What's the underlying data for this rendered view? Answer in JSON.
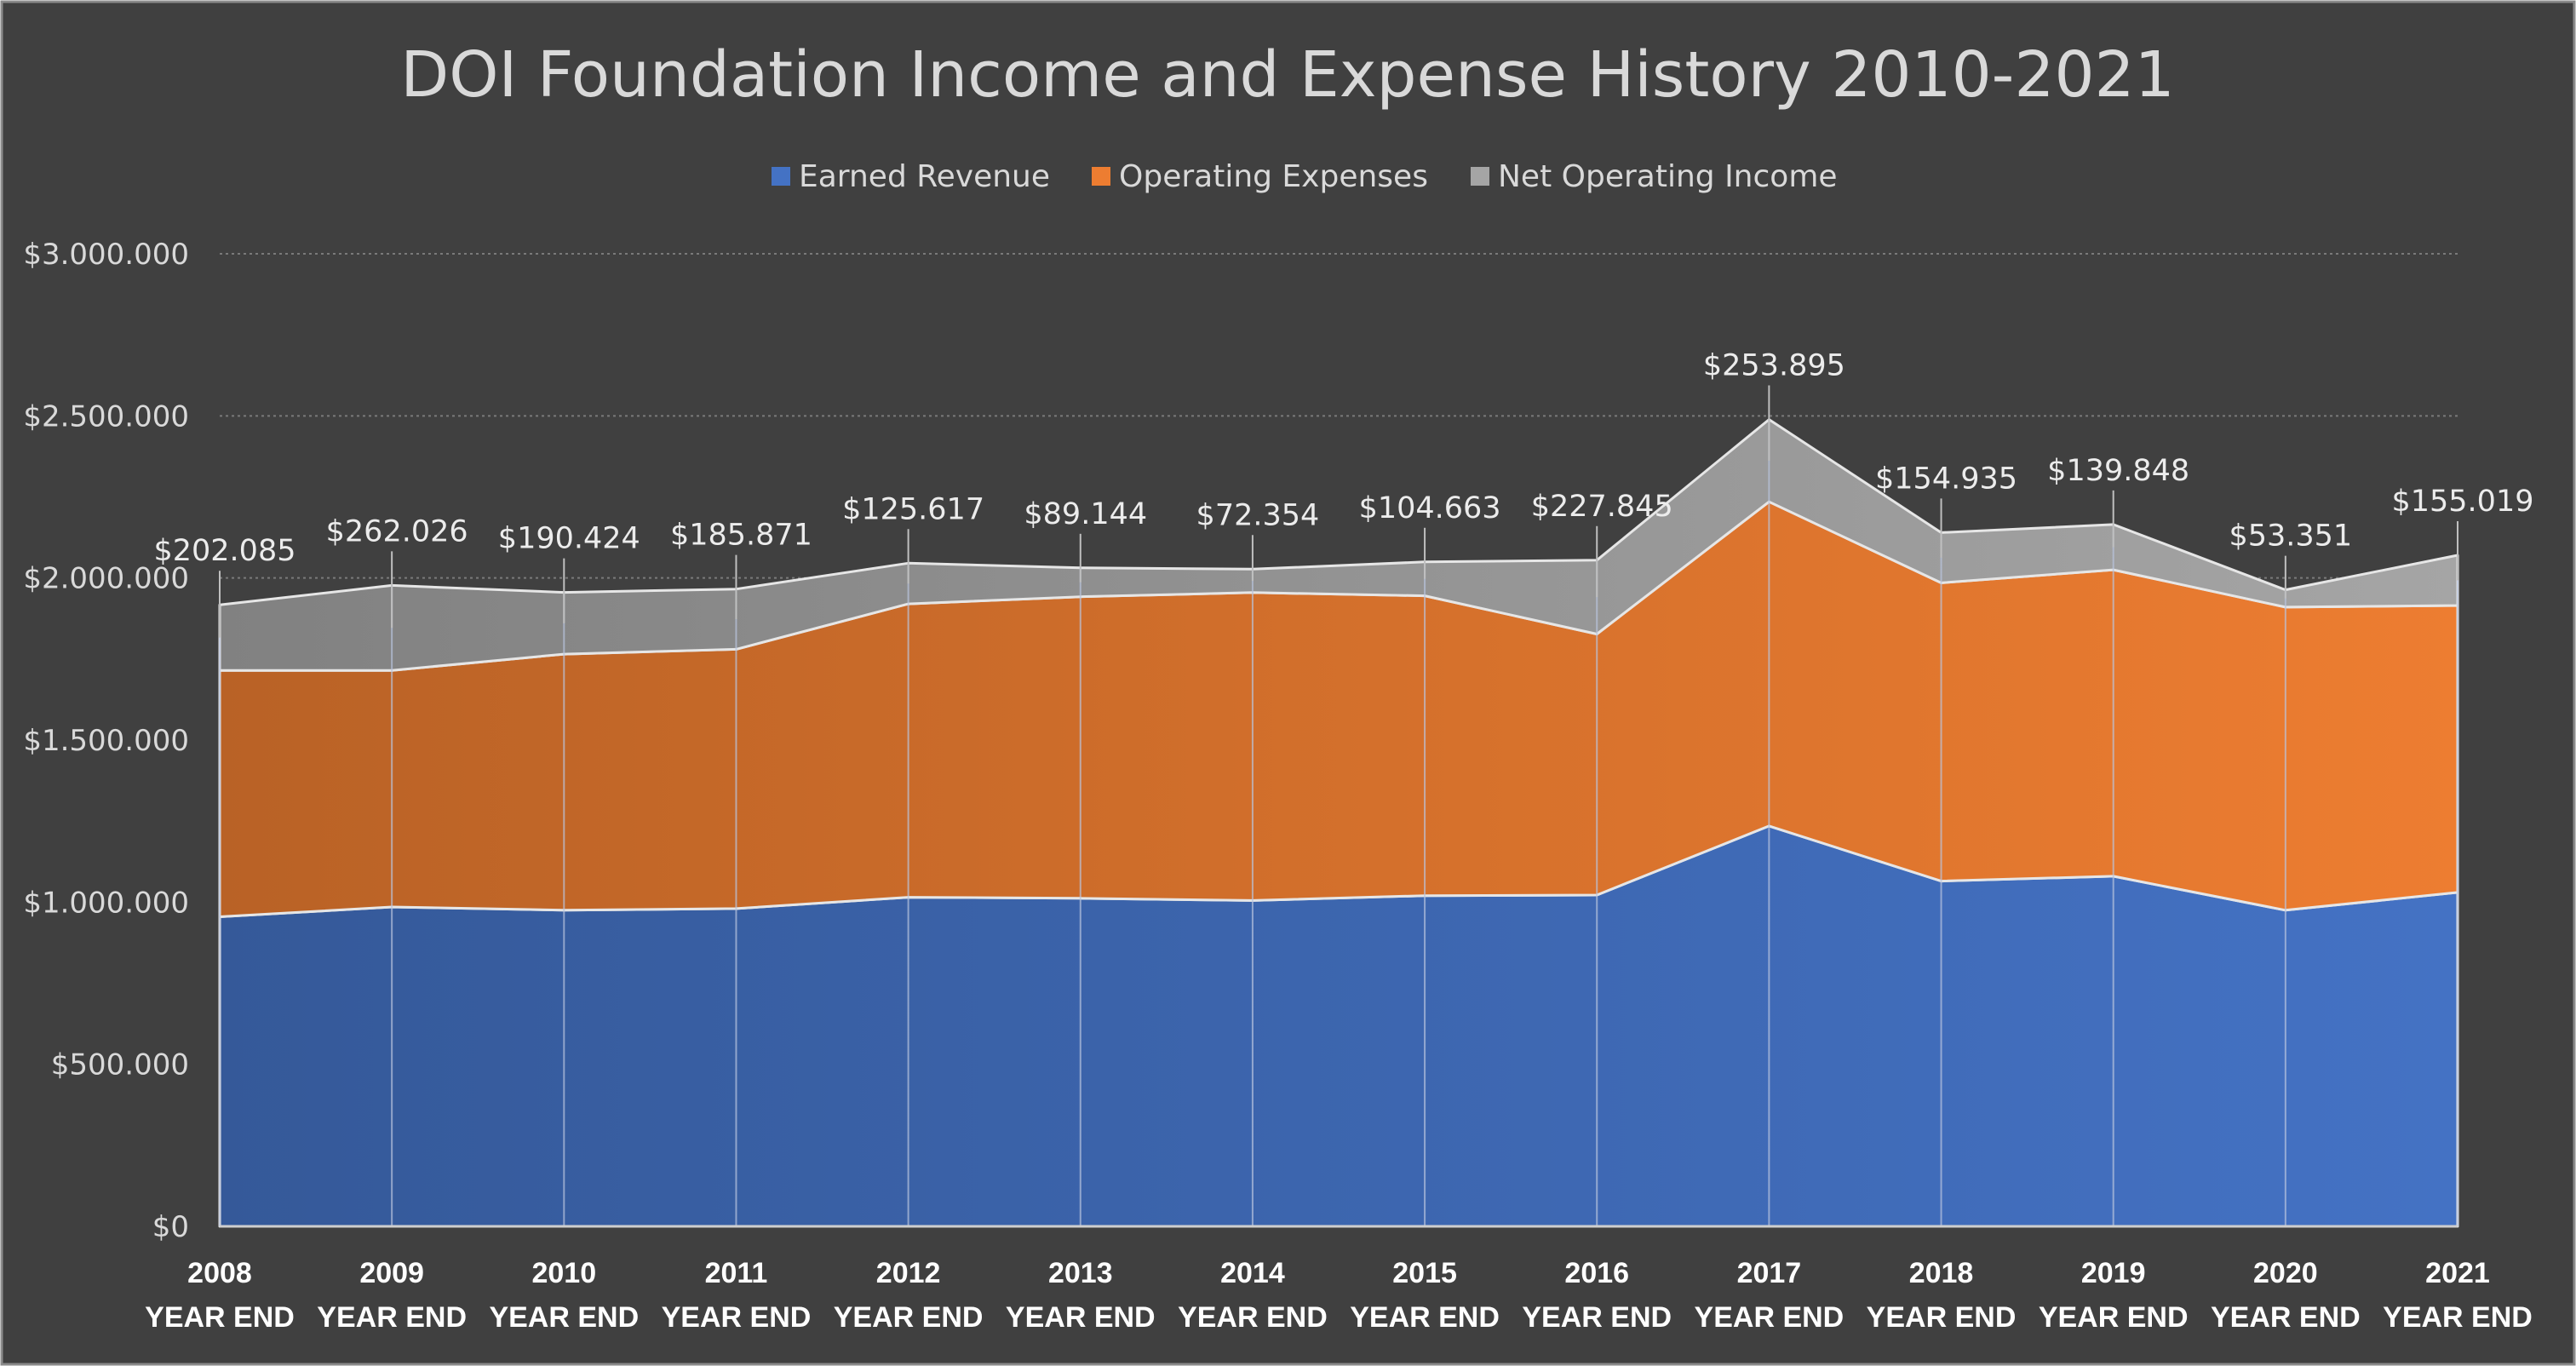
{
  "chart_data": {
    "type": "area",
    "stacked": true,
    "title": "DOI Foundation Income and Expense History 2010-2021",
    "categories": [
      "2008",
      "2009",
      "2010",
      "2011",
      "2012",
      "2013",
      "2014",
      "2015",
      "2016",
      "2017",
      "2018",
      "2019",
      "2020",
      "2021"
    ],
    "category_sublabel": "YEAR END",
    "ylim": [
      0,
      3000000
    ],
    "yticks": [
      0,
      500000,
      1000000,
      1500000,
      2000000,
      2500000,
      3000000
    ],
    "ytick_labels": [
      "$0",
      "$500.000",
      "$1.000.000",
      "$1.500.000",
      "$2.000.000",
      "$2.500.000",
      "$3.000.000"
    ],
    "grid": true,
    "legend_position": "top",
    "series": [
      {
        "name": "Earned Revenue",
        "color": "#4472c4",
        "values": [
          955000,
          985000,
          975000,
          980000,
          1015000,
          1012000,
          1005000,
          1020000,
          1022000,
          1235000,
          1065000,
          1080000,
          975000,
          1030000
        ]
      },
      {
        "name": "Operating Expenses",
        "color": "#ed7d31",
        "values": [
          760000,
          730000,
          790000,
          800000,
          905000,
          930000,
          950000,
          925000,
          805000,
          1000000,
          920000,
          945000,
          935000,
          885000
        ]
      },
      {
        "name": "Net Operating Income",
        "color": "#a5a5a5",
        "values": [
          202085,
          262026,
          190424,
          185871,
          125617,
          89144,
          72354,
          104663,
          227845,
          253895,
          154935,
          139848,
          53351,
          155019
        ]
      }
    ],
    "data_labels": [
      "$202.085",
      "$262.026",
      "$190.424",
      "$185.871",
      "$125.617",
      "$89.144",
      "$72.354",
      "$104.663",
      "$227.845",
      "$253.895",
      "$154.935",
      "$139.848",
      "$53.351",
      "$155.019"
    ]
  }
}
